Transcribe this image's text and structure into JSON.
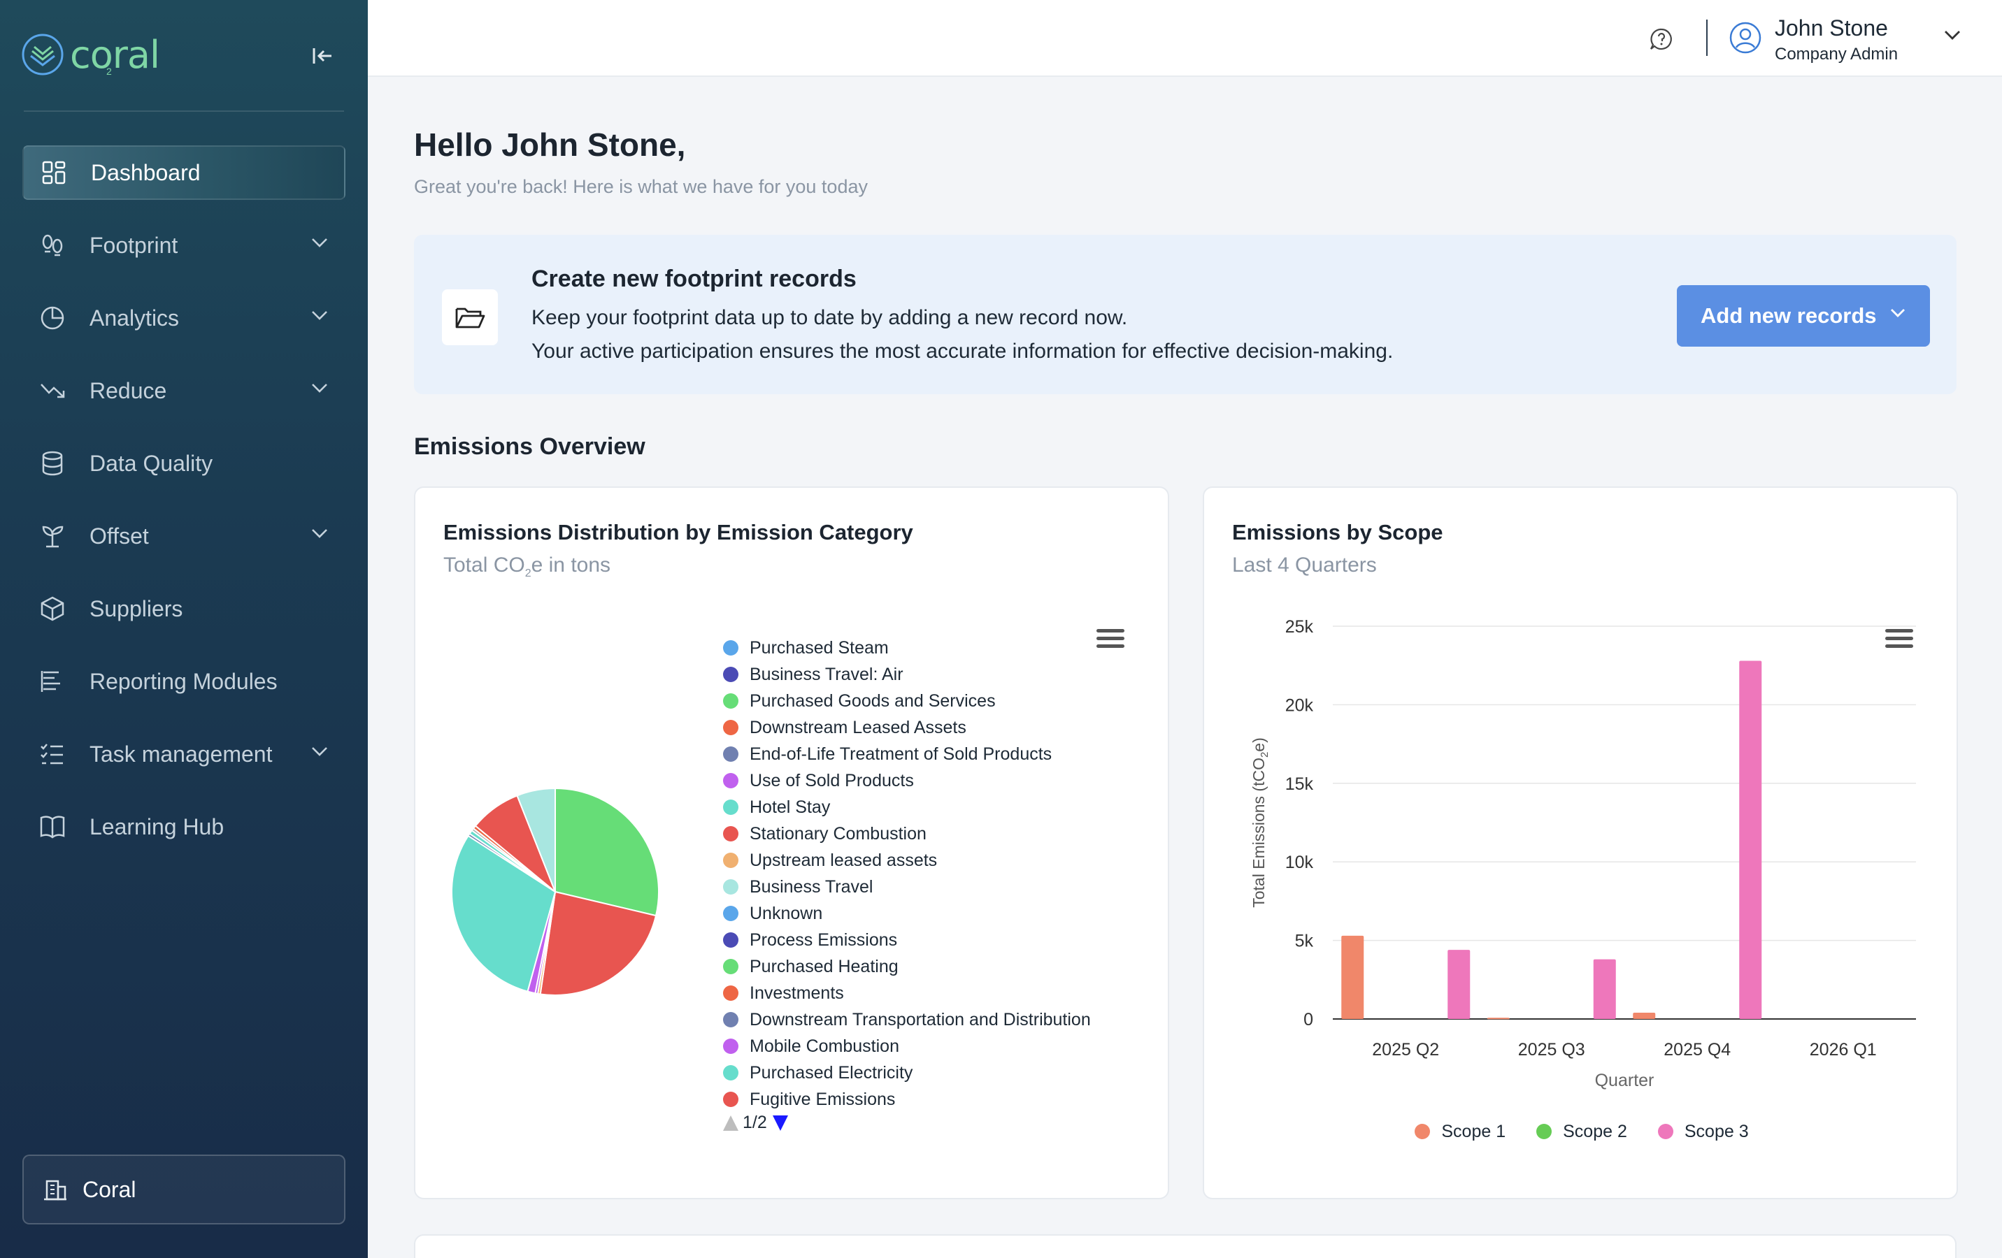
{
  "app": {
    "logo_text": "coral",
    "logo_sub": "2"
  },
  "sidebar": {
    "items": [
      {
        "label": "Dashboard",
        "icon": "dashboard-grid-icon",
        "has_chevron": false
      },
      {
        "label": "Footprint",
        "icon": "footprint-icon",
        "has_chevron": true
      },
      {
        "label": "Analytics",
        "icon": "pie-chart-icon",
        "has_chevron": true
      },
      {
        "label": "Reduce",
        "icon": "trend-down-icon",
        "has_chevron": true
      },
      {
        "label": "Data Quality",
        "icon": "database-icon",
        "has_chevron": false
      },
      {
        "label": "Offset",
        "icon": "plant-icon",
        "has_chevron": true
      },
      {
        "label": "Suppliers",
        "icon": "box-icon",
        "has_chevron": false
      },
      {
        "label": "Reporting Modules",
        "icon": "report-icon",
        "has_chevron": false
      },
      {
        "label": "Task management",
        "icon": "task-list-icon",
        "has_chevron": true
      },
      {
        "label": "Learning Hub",
        "icon": "book-icon",
        "has_chevron": false
      }
    ],
    "org": "Coral"
  },
  "header": {
    "user_name": "John Stone",
    "user_role": "Company Admin"
  },
  "main": {
    "greeting": "Hello John Stone,",
    "greeting_sub": "Great you're back! Here is what we have for you today",
    "banner": {
      "title": "Create new footprint records",
      "line1": "Keep your footprint data up to date by adding a new record now.",
      "line2": "Your active participation ensures the most accurate information for effective decision-making.",
      "button": "Add new records"
    },
    "section_title": "Emissions Overview"
  },
  "pie_card": {
    "title": "Emissions Distribution by Emission Category",
    "subtitle_pre": "Total CO",
    "subtitle_sub": "2",
    "subtitle_post": "e in tons",
    "pager": "1/2"
  },
  "bar_card": {
    "title": "Emissions by Scope",
    "subtitle": "Last 4 Quarters"
  },
  "colors": {
    "accent": "#5b8fe3",
    "scope1": "#f0876a",
    "scope2": "#66cc55",
    "scope3": "#ee77bb"
  },
  "chart_data": [
    {
      "type": "pie",
      "title": "Emissions Distribution by Emission Category",
      "legend": [
        {
          "name": "Purchased Steam",
          "color": "#5aa6ea"
        },
        {
          "name": "Business Travel: Air",
          "color": "#4b4bb5"
        },
        {
          "name": "Purchased Goods and Services",
          "color": "#66dd77"
        },
        {
          "name": "Downstream Leased Assets",
          "color": "#ee6644"
        },
        {
          "name": "End-of-Life Treatment of Sold Products",
          "color": "#7080b0"
        },
        {
          "name": "Use of Sold Products",
          "color": "#c060ee"
        },
        {
          "name": "Hotel Stay",
          "color": "#66ddcc"
        },
        {
          "name": "Stationary Combustion",
          "color": "#e85550"
        },
        {
          "name": "Upstream leased assets",
          "color": "#f0b070"
        },
        {
          "name": "Business Travel",
          "color": "#a8e6e0"
        },
        {
          "name": "Unknown",
          "color": "#5aa6ea"
        },
        {
          "name": "Process Emissions",
          "color": "#4b4bb5"
        },
        {
          "name": "Purchased Heating",
          "color": "#66dd77"
        },
        {
          "name": "Investments",
          "color": "#ee6644"
        },
        {
          "name": "Downstream Transportation and Distribution",
          "color": "#7080b0"
        },
        {
          "name": "Mobile Combustion",
          "color": "#c060ee"
        },
        {
          "name": "Purchased Electricity",
          "color": "#66ddcc"
        },
        {
          "name": "Fugitive Emissions",
          "color": "#e85550"
        }
      ],
      "slices": [
        {
          "name": "Purchased Goods and Services",
          "percent": 28.7,
          "color": "#66dd77"
        },
        {
          "name": "Stationary Combustion",
          "percent": 23.6,
          "color": "#e85550"
        },
        {
          "name": "Upstream leased assets",
          "percent": 0.4,
          "color": "#f0b070"
        },
        {
          "name": "Mobile Combustion",
          "percent": 0.4,
          "color": "#c060ee"
        },
        {
          "name": "Use of Sold Products",
          "percent": 1.2,
          "color": "#c060ee"
        },
        {
          "name": "Purchased Electricity",
          "percent": 29.8,
          "color": "#66ddcc"
        },
        {
          "name": "End-of-Life Treatment of Sold Products",
          "percent": 0.4,
          "color": "#7080b0"
        },
        {
          "name": "Hotel Stay",
          "percent": 0.6,
          "color": "#66ddcc"
        },
        {
          "name": "Business Travel: Air",
          "percent": 0.4,
          "color": "#b0b0b0"
        },
        {
          "name": "Downstream Leased Assets",
          "percent": 0.5,
          "color": "#ee6644"
        },
        {
          "name": "Fugitive Emissions",
          "percent": 8.0,
          "color": "#e85550"
        },
        {
          "name": "Business Travel",
          "percent": 6.0,
          "color": "#a8e6e0"
        }
      ]
    },
    {
      "type": "bar",
      "title": "Emissions by Scope",
      "categories": [
        "2025 Q2",
        "2025 Q3",
        "2025 Q4",
        "2026 Q1"
      ],
      "series": [
        {
          "name": "Scope 1",
          "color": "#f0876a",
          "values": [
            5300,
            80,
            400,
            0
          ]
        },
        {
          "name": "Scope 2",
          "color": "#66cc55",
          "values": [
            0,
            0,
            0,
            0
          ]
        },
        {
          "name": "Scope 3",
          "color": "#ee77bb",
          "values": [
            4400,
            3800,
            22800,
            0
          ]
        }
      ],
      "xlabel": "Quarter",
      "ylabel_pre": "Total Emissions (tCO",
      "ylabel_sub": "2",
      "ylabel_post": "e)",
      "ylim": [
        0,
        25000
      ],
      "yticks": [
        "0",
        "5k",
        "10k",
        "15k",
        "20k",
        "25k"
      ],
      "ytick_values": [
        0,
        5000,
        10000,
        15000,
        20000,
        25000
      ]
    }
  ]
}
